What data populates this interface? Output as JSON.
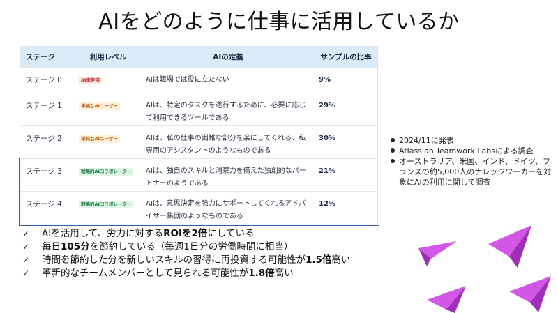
{
  "slide": {
    "title": "AIをどのように仕事に活用しているか"
  },
  "table": {
    "headers": [
      "ステージ",
      "利用レベル",
      "AIの定義",
      "サンプルの比率"
    ],
    "rows": [
      {
        "stage": "ステージ 0",
        "badge": "AI未使用",
        "definition": "AIは職場では役に立たない",
        "pct": "9%"
      },
      {
        "stage": "ステージ 1",
        "badge": "単純なAIユーザー",
        "definition": "AIは、特定のタスクを遂行するために、必要に応じて利用できるツールである",
        "pct": "29%"
      },
      {
        "stage": "ステージ 2",
        "badge": "単純なAIユーザー",
        "definition": "AIは、私の仕事の困難な部分を楽にしてくれる、私専用のアシスタントのようなものである",
        "pct": "30%"
      },
      {
        "stage": "ステージ 3",
        "badge": "戦略的AIコラボレーター",
        "definition": "AIは、独自のスキルと洞察力を備えた独創的なパートナーのようである",
        "pct": "21%"
      },
      {
        "stage": "ステージ 4",
        "badge": "戦略的AIコラボレーター",
        "definition": "AIは、意思決定を強力にサポートしてくれるアドバイザー集団のようなものである",
        "pct": "12%"
      }
    ]
  },
  "notes": [
    "2024/11に発表",
    "Atlassian Teamwork Labsによる調査",
    "オーストラリア、米国、インド、ドイツ、フランスの約5,000人のナレッジワーカーを対象にAIの利用に関して調査"
  ],
  "findings": [
    {
      "pre": "AIを活用して、労力に対する",
      "bold": "ROIを2倍",
      "post": "にしている"
    },
    {
      "pre": "毎日",
      "bold": "105分",
      "post": "を節約している（毎週1日分の労働時間に相当）"
    },
    {
      "pre": "時間を節約した分を新しいスキルの習得に再投資する可能性が",
      "bold": "1.5倍",
      "post": "高い"
    },
    {
      "pre": "革新的なチームメンバーとして見られる可能性が",
      "bold": "1.8倍",
      "post": "高い"
    }
  ],
  "check_glyph": "✓",
  "colors": {
    "header_bg": "#dcebf8",
    "highlight_border": "#2f5fb0",
    "plane": "#c43fd9"
  }
}
